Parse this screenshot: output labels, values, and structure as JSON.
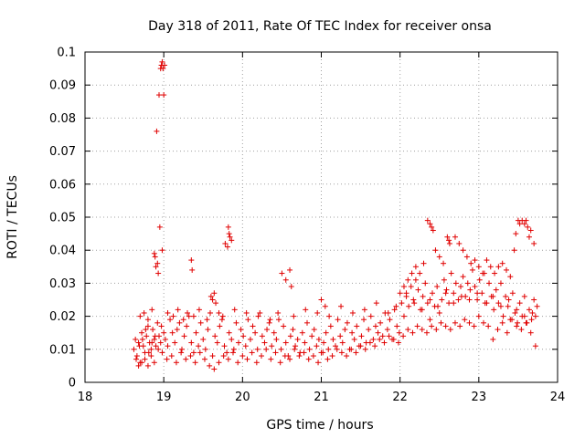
{
  "chart_data": {
    "type": "scatter",
    "title": "Day 318 of 2011, Rate Of TEC Index for receiver onsa",
    "xlabel": "GPS time / hours",
    "ylabel": "ROTI / TECUs",
    "xlim": [
      18,
      24
    ],
    "ylim": [
      0,
      0.1
    ],
    "xticks": [
      "18",
      "19",
      "20",
      "21",
      "22",
      "23",
      "24"
    ],
    "yticks": [
      "0",
      "0.01",
      "0.02",
      "0.03",
      "0.04",
      "0.05",
      "0.06",
      "0.07",
      "0.08",
      "0.09",
      "0.1"
    ],
    "grid": true,
    "marker": "+",
    "color": "#e00000",
    "series": [
      {
        "name": "ROTI",
        "x": [
          18.62,
          18.64,
          18.66,
          18.68,
          18.7,
          18.72,
          18.74,
          18.76,
          18.78,
          18.8,
          18.82,
          18.84,
          18.86,
          18.88,
          18.9,
          18.92,
          18.94,
          18.96,
          18.98,
          19.0,
          18.65,
          18.69,
          18.73,
          18.77,
          18.81,
          18.85,
          18.89,
          18.93,
          18.97,
          19.02,
          19.05,
          19.08,
          19.11,
          19.14,
          19.17,
          19.2,
          19.23,
          19.26,
          19.29,
          19.32,
          19.35,
          19.38,
          19.41,
          19.44,
          19.47,
          19.5,
          19.53,
          19.56,
          19.59,
          19.62,
          19.65,
          19.68,
          19.71,
          19.74,
          19.77,
          19.8,
          19.83,
          19.86,
          19.89,
          19.92,
          19.95,
          19.98,
          20.01,
          20.04,
          20.07,
          20.1,
          20.13,
          20.16,
          20.19,
          20.22,
          20.25,
          20.28,
          20.31,
          20.34,
          20.37,
          20.4,
          20.43,
          20.46,
          20.49,
          20.52,
          20.55,
          20.58,
          20.61,
          20.64,
          20.67,
          20.7,
          20.73,
          20.76,
          20.79,
          20.82,
          20.85,
          20.88,
          20.91,
          20.94,
          20.97,
          21.0,
          21.03,
          21.06,
          21.09,
          21.12,
          21.15,
          21.18,
          21.21,
          21.24,
          21.27,
          21.3,
          21.33,
          21.36,
          21.39,
          21.42,
          21.45,
          21.48,
          21.51,
          21.54,
          21.57,
          21.6,
          21.63,
          21.66,
          21.69,
          21.72,
          21.75,
          21.78,
          21.81,
          21.84,
          21.87,
          21.9,
          21.93,
          21.96,
          21.99,
          22.02,
          22.05,
          22.08,
          22.11,
          22.14,
          22.17,
          22.2,
          22.23,
          22.26,
          22.29,
          22.32,
          22.35,
          22.38,
          22.41,
          22.44,
          22.47,
          22.5,
          22.53,
          22.56,
          22.59,
          22.62,
          22.65,
          22.68,
          22.71,
          22.74,
          22.77,
          22.8,
          22.83,
          22.86,
          22.89,
          22.92,
          22.95,
          22.98,
          23.01,
          23.04,
          23.07,
          23.1,
          23.13,
          23.16,
          23.19,
          23.22,
          23.25,
          23.28,
          23.31,
          23.34,
          23.37,
          23.4,
          23.43,
          23.46,
          23.49,
          23.52,
          23.55,
          23.58,
          23.61,
          23.64,
          23.67,
          23.7,
          23.72,
          23.74,
          18.91,
          18.94,
          18.96,
          18.97,
          18.98,
          18.99,
          19.0,
          19.01,
          18.88,
          18.89,
          18.9,
          18.92,
          18.93,
          18.95,
          18.98,
          19.35,
          19.36,
          19.82,
          19.83,
          19.84,
          19.86,
          19.78,
          19.81,
          22.35,
          22.38,
          22.4,
          22.42,
          22.6,
          22.62,
          22.63,
          23.5,
          23.52,
          23.55,
          23.58,
          23.6,
          23.62,
          23.64,
          23.66,
          23.7,
          23.45,
          23.47,
          18.68,
          18.72,
          18.76,
          18.8,
          18.84,
          18.88,
          19.04,
          19.1,
          19.16,
          19.22,
          19.28,
          19.34,
          19.4,
          19.46,
          19.52,
          19.58,
          19.64,
          19.7,
          19.76,
          19.82,
          19.88,
          19.94,
          20.0,
          20.06,
          20.12,
          20.18,
          20.24,
          20.3,
          20.36,
          20.42,
          20.48,
          20.54,
          20.6,
          20.66,
          20.72,
          20.78,
          20.84,
          20.9,
          20.96,
          21.02,
          21.08,
          21.14,
          21.2,
          21.26,
          21.32,
          21.38,
          21.44,
          21.5,
          21.56,
          21.62,
          21.68,
          21.74,
          21.8,
          21.86,
          21.92,
          21.98,
          22.04,
          22.1,
          22.16,
          22.22,
          22.28,
          22.34,
          22.4,
          22.46,
          22.52,
          22.58,
          22.64,
          22.7,
          22.76,
          22.82,
          22.88,
          22.94,
          23.0,
          23.06,
          23.12,
          23.18,
          23.24,
          23.3,
          23.36,
          23.42,
          23.48,
          23.54,
          23.6,
          23.66,
          23.72,
          19.6,
          19.62,
          19.64,
          19.66,
          20.5,
          20.55,
          20.6,
          20.62,
          21.0,
          21.05,
          22.0,
          22.05,
          22.1,
          22.15,
          22.2,
          22.25,
          22.3,
          22.45,
          22.5,
          22.55,
          22.7,
          22.75,
          22.8,
          22.85,
          22.9,
          22.95,
          23.0,
          23.05,
          23.1,
          23.15,
          23.2,
          23.25,
          23.3,
          23.35,
          23.4,
          18.7,
          18.75,
          18.8,
          18.85,
          19.05,
          19.12,
          19.18,
          19.25,
          19.3,
          19.38,
          19.45,
          19.55,
          19.7,
          19.75,
          19.9,
          20.05,
          20.2,
          20.35,
          20.45,
          20.65,
          20.8,
          20.95,
          21.1,
          21.25,
          21.4,
          21.55,
          21.7,
          21.85,
          21.95,
          22.08,
          22.18,
          22.28,
          22.38,
          22.48,
          22.58,
          22.68,
          22.78,
          22.88,
          22.98,
          23.08,
          23.18,
          23.28,
          23.38,
          23.48,
          23.58,
          23.68
        ],
        "y": [
          0.01,
          0.013,
          0.008,
          0.012,
          0.006,
          0.015,
          0.011,
          0.009,
          0.014,
          0.017,
          0.012,
          0.01,
          0.016,
          0.013,
          0.011,
          0.018,
          0.014,
          0.012,
          0.009,
          0.015,
          0.007,
          0.011,
          0.013,
          0.016,
          0.009,
          0.012,
          0.014,
          0.01,
          0.017,
          0.013,
          0.011,
          0.019,
          0.015,
          0.012,
          0.016,
          0.018,
          0.01,
          0.014,
          0.017,
          0.02,
          0.012,
          0.009,
          0.015,
          0.011,
          0.018,
          0.013,
          0.01,
          0.016,
          0.021,
          0.008,
          0.014,
          0.012,
          0.017,
          0.019,
          0.011,
          0.009,
          0.015,
          0.013,
          0.01,
          0.018,
          0.012,
          0.016,
          0.014,
          0.011,
          0.019,
          0.013,
          0.017,
          0.015,
          0.01,
          0.021,
          0.014,
          0.012,
          0.016,
          0.018,
          0.011,
          0.015,
          0.013,
          0.019,
          0.01,
          0.017,
          0.012,
          0.008,
          0.014,
          0.016,
          0.011,
          0.013,
          0.009,
          0.015,
          0.012,
          0.018,
          0.01,
          0.014,
          0.016,
          0.011,
          0.013,
          0.009,
          0.012,
          0.015,
          0.01,
          0.017,
          0.013,
          0.011,
          0.019,
          0.014,
          0.012,
          0.016,
          0.018,
          0.01,
          0.015,
          0.013,
          0.017,
          0.011,
          0.014,
          0.019,
          0.012,
          0.016,
          0.02,
          0.013,
          0.017,
          0.015,
          0.018,
          0.014,
          0.021,
          0.016,
          0.019,
          0.013,
          0.022,
          0.017,
          0.015,
          0.024,
          0.02,
          0.027,
          0.023,
          0.029,
          0.025,
          0.031,
          0.028,
          0.022,
          0.026,
          0.03,
          0.024,
          0.019,
          0.027,
          0.023,
          0.029,
          0.021,
          0.025,
          0.031,
          0.028,
          0.024,
          0.033,
          0.027,
          0.03,
          0.025,
          0.029,
          0.032,
          0.026,
          0.03,
          0.028,
          0.034,
          0.029,
          0.025,
          0.031,
          0.027,
          0.033,
          0.024,
          0.03,
          0.026,
          0.022,
          0.028,
          0.024,
          0.03,
          0.02,
          0.026,
          0.023,
          0.019,
          0.027,
          0.021,
          0.018,
          0.024,
          0.02,
          0.026,
          0.018,
          0.022,
          0.019,
          0.025,
          0.02,
          0.023,
          0.076,
          0.087,
          0.095,
          0.096,
          0.097,
          0.095,
          0.087,
          0.096,
          0.039,
          0.038,
          0.035,
          0.036,
          0.033,
          0.047,
          0.04,
          0.037,
          0.034,
          0.047,
          0.045,
          0.044,
          0.043,
          0.042,
          0.041,
          0.049,
          0.048,
          0.047,
          0.046,
          0.044,
          0.043,
          0.042,
          0.049,
          0.048,
          0.049,
          0.048,
          0.049,
          0.047,
          0.044,
          0.046,
          0.042,
          0.04,
          0.045,
          0.005,
          0.006,
          0.007,
          0.005,
          0.008,
          0.006,
          0.007,
          0.008,
          0.006,
          0.009,
          0.007,
          0.008,
          0.006,
          0.009,
          0.007,
          0.005,
          0.004,
          0.006,
          0.008,
          0.007,
          0.009,
          0.006,
          0.008,
          0.007,
          0.009,
          0.006,
          0.008,
          0.01,
          0.007,
          0.009,
          0.006,
          0.008,
          0.007,
          0.01,
          0.008,
          0.009,
          0.007,
          0.008,
          0.006,
          0.009,
          0.007,
          0.008,
          0.01,
          0.009,
          0.008,
          0.01,
          0.009,
          0.011,
          0.01,
          0.012,
          0.011,
          0.013,
          0.012,
          0.014,
          0.013,
          0.012,
          0.014,
          0.016,
          0.015,
          0.017,
          0.016,
          0.015,
          0.017,
          0.016,
          0.018,
          0.017,
          0.016,
          0.018,
          0.017,
          0.019,
          0.018,
          0.017,
          0.02,
          0.018,
          0.017,
          0.013,
          0.016,
          0.018,
          0.015,
          0.019,
          0.017,
          0.016,
          0.018,
          0.015,
          0.011,
          0.026,
          0.025,
          0.027,
          0.024,
          0.033,
          0.031,
          0.034,
          0.029,
          0.025,
          0.023,
          0.027,
          0.029,
          0.031,
          0.033,
          0.035,
          0.033,
          0.036,
          0.04,
          0.038,
          0.036,
          0.044,
          0.042,
          0.04,
          0.038,
          0.036,
          0.037,
          0.035,
          0.033,
          0.037,
          0.035,
          0.033,
          0.035,
          0.036,
          0.034,
          0.032,
          0.02,
          0.021,
          0.019,
          0.022,
          0.021,
          0.02,
          0.022,
          0.019,
          0.021,
          0.02,
          0.022,
          0.019,
          0.021,
          0.02,
          0.022,
          0.021,
          0.02,
          0.019,
          0.021,
          0.02,
          0.022,
          0.021,
          0.02,
          0.023,
          0.021,
          0.022,
          0.024,
          0.021,
          0.023,
          0.026,
          0.024,
          0.022,
          0.025,
          0.023,
          0.027,
          0.024,
          0.026,
          0.025,
          0.027,
          0.024,
          0.026,
          0.023,
          0.025,
          0.022,
          0.02,
          0.021
        ]
      }
    ]
  }
}
